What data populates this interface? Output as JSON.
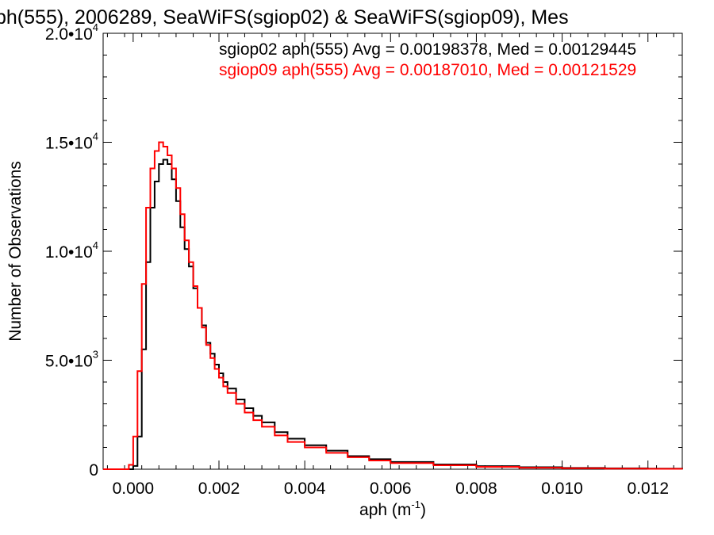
{
  "chart_data": {
    "type": "line",
    "title": "ph(555), 2006289, SeaWiFS(sgiop02) & SeaWiFS(sgiop09), Mes",
    "xlabel": "aph (m",
    "xlabel_sup": "-1",
    "xlabel_suffix": ")",
    "ylabel": "Number of Observations",
    "xlim": [
      -0.0007,
      0.0128
    ],
    "ylim": [
      0,
      20000
    ],
    "x_ticks": [
      {
        "value": 0.0,
        "label": "0.000"
      },
      {
        "value": 0.002,
        "label": "0.002"
      },
      {
        "value": 0.004,
        "label": "0.004"
      },
      {
        "value": 0.006,
        "label": "0.006"
      },
      {
        "value": 0.008,
        "label": "0.008"
      },
      {
        "value": 0.01,
        "label": "0.010"
      },
      {
        "value": 0.012,
        "label": "0.012"
      }
    ],
    "y_ticks": [
      {
        "value": 0,
        "base": "0",
        "exp": ""
      },
      {
        "value": 5000,
        "base": "5.0•10",
        "exp": "3"
      },
      {
        "value": 10000,
        "base": "1.0•10",
        "exp": "4"
      },
      {
        "value": 15000,
        "base": "1.5•10",
        "exp": "4"
      },
      {
        "value": 20000,
        "base": "2.0•10",
        "exp": "4"
      }
    ],
    "legend_placement": "top-right",
    "series": [
      {
        "name": "sgiop02 aph(555) Avg = 0.00198378, Med = 0.00129445",
        "color": "#000000",
        "x": [
          -0.0007,
          -0.0001,
          0.0,
          0.0001,
          0.0002,
          0.0003,
          0.0004,
          0.0005,
          0.0006,
          0.0007,
          0.0008,
          0.0009,
          0.001,
          0.0011,
          0.0012,
          0.0013,
          0.0014,
          0.0015,
          0.0016,
          0.0017,
          0.0018,
          0.0019,
          0.002,
          0.0021,
          0.0022,
          0.0024,
          0.0026,
          0.0028,
          0.003,
          0.0033,
          0.0036,
          0.004,
          0.0045,
          0.005,
          0.0055,
          0.006,
          0.007,
          0.008,
          0.009,
          0.01,
          0.011,
          0.012,
          0.0128
        ],
        "y": [
          0,
          0,
          150,
          1500,
          5500,
          9500,
          12000,
          13200,
          14000,
          14200,
          14000,
          13300,
          12300,
          11100,
          10100,
          9300,
          8300,
          7400,
          6600,
          5800,
          5300,
          4800,
          4400,
          4000,
          3700,
          3200,
          2800,
          2450,
          2150,
          1700,
          1400,
          1100,
          850,
          600,
          460,
          330,
          220,
          140,
          90,
          60,
          40,
          25,
          15
        ]
      },
      {
        "name": "sgiop09 aph(555) Avg = 0.00187010, Med = 0.00121529",
        "color": "#ff0000",
        "x": [
          -0.0007,
          -0.0002,
          -0.0001,
          0.0,
          0.0001,
          0.0002,
          0.0003,
          0.0004,
          0.0005,
          0.0006,
          0.0007,
          0.0008,
          0.0009,
          0.001,
          0.0011,
          0.0012,
          0.0013,
          0.0014,
          0.0015,
          0.0016,
          0.0017,
          0.0018,
          0.0019,
          0.002,
          0.0021,
          0.0022,
          0.0024,
          0.0026,
          0.0028,
          0.003,
          0.0033,
          0.0036,
          0.004,
          0.0045,
          0.005,
          0.0055,
          0.006,
          0.007,
          0.008,
          0.009,
          0.01,
          0.011,
          0.012,
          0.0128
        ],
        "y": [
          0,
          0,
          200,
          1500,
          4500,
          8500,
          12000,
          13800,
          14600,
          15000,
          14800,
          14400,
          13800,
          12900,
          11700,
          10500,
          9500,
          8400,
          7400,
          6500,
          5700,
          5100,
          4600,
          4200,
          3800,
          3500,
          3000,
          2600,
          2250,
          1950,
          1550,
          1250,
          1000,
          750,
          550,
          400,
          280,
          180,
          110,
          70,
          45,
          30,
          20,
          12
        ]
      }
    ]
  }
}
